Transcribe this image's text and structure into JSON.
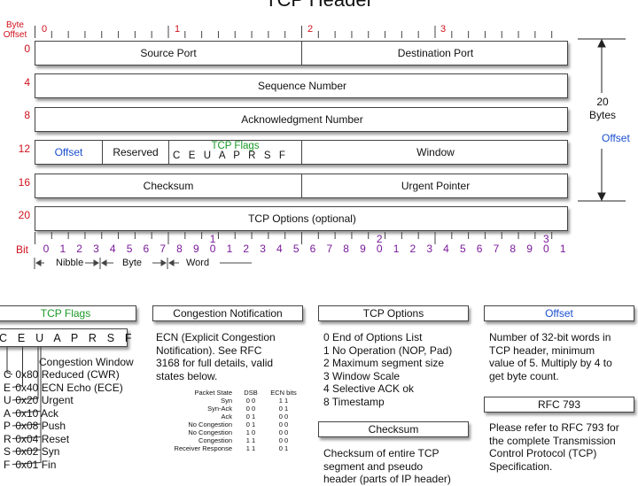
{
  "title": "TCP Header",
  "byte_offset_label": [
    "Byte",
    "Offset"
  ],
  "row_offsets": [
    "0",
    "4",
    "8",
    "12",
    "16",
    "20"
  ],
  "byte_columns": [
    "0",
    "1",
    "2",
    "3"
  ],
  "rows": {
    "source_port": "Source Port",
    "destination_port": "Destination Port",
    "sequence_number": "Sequence Number",
    "ack_number": "Acknowledgment Number",
    "offset": "Offset",
    "reserved": "Reserved",
    "tcp_flags_title": "TCP Flags",
    "flags_letters": "C E U A P R S F",
    "window": "Window",
    "checksum": "Checksum",
    "urgent_pointer": "Urgent Pointer",
    "tcp_options": "TCP Options (optional)"
  },
  "bit_label": "Bit",
  "bit_numbers": [
    "0",
    "1",
    "2",
    "3",
    "4",
    "5",
    "6",
    "7",
    "8",
    "9",
    "10",
    "1",
    "2",
    "3",
    "4",
    "5",
    "6",
    "7",
    "8",
    "9",
    "20",
    "1",
    "2",
    "3",
    "4",
    "5",
    "6",
    "7",
    "8",
    "9",
    "30",
    "1"
  ],
  "scale": {
    "nibble": "Nibble",
    "byte": "Byte",
    "word": "Word"
  },
  "side": {
    "size": "20",
    "size_unit": "Bytes",
    "offset": "Offset"
  },
  "panels": {
    "tcp_flags": {
      "title": "TCP Flags",
      "letters": "C E U A P R S F",
      "subtitle": "Congestion Window",
      "items": [
        {
          "l": "C",
          "h": "0x80",
          "t": "Reduced (CWR)"
        },
        {
          "l": "E",
          "h": "0x40",
          "t": "ECN Echo (ECE)"
        },
        {
          "l": "U",
          "h": "0x20",
          "t": "Urgent"
        },
        {
          "l": "A",
          "h": "0x10",
          "t": "Ack"
        },
        {
          "l": "P",
          "h": "0x08",
          "t": "Push"
        },
        {
          "l": "R",
          "h": "0x04",
          "t": "Reset"
        },
        {
          "l": "S",
          "h": "0x02",
          "t": "Syn"
        },
        {
          "l": "F",
          "h": "0x01",
          "t": "Fin"
        }
      ]
    },
    "congestion": {
      "title": "Congestion Notification",
      "lines": [
        "ECN (Explicit Congestion",
        "Notification).  See RFC",
        "3168 for full details, valid",
        "states below."
      ],
      "table_header": [
        "Packet State",
        "DSB",
        "ECN bits"
      ],
      "table_rows": [
        [
          "Syn",
          "0 0",
          "1 1"
        ],
        [
          "Syn-Ack",
          "0 0",
          "0 1"
        ],
        [
          "Ack",
          "0 1",
          "0 0"
        ],
        [
          "",
          "",
          " "
        ],
        [
          "No Congestion",
          "0 1",
          "0 0"
        ],
        [
          "No Congestion",
          "1 0",
          "0 0"
        ],
        [
          "",
          "",
          " "
        ],
        [
          "Congestion",
          "1 1",
          "0 0"
        ],
        [
          "Receiver Response",
          "1 1",
          "0 1"
        ]
      ]
    },
    "tcp_options": {
      "title": "TCP Options",
      "lines": [
        "0 End of Options List",
        "1 No Operation (NOP, Pad)",
        "2 Maximum segment size",
        "3 Window Scale",
        "4 Selective ACK ok",
        "8 Timestamp"
      ]
    },
    "checksum": {
      "title": "Checksum",
      "lines": [
        "Checksum of entire TCP",
        "segment and pseudo",
        "header (parts of IP header)"
      ]
    },
    "offset": {
      "title": "Offset",
      "lines": [
        "Number of 32-bit words in",
        "TCP header, minimum",
        "value of 5.  Multiply by 4 to",
        "get byte count."
      ]
    },
    "rfc": {
      "title": "RFC 793",
      "lines": [
        "Please refer to RFC 793 for",
        "the complete Transmission",
        "Control Protocol (TCP)",
        "Specification."
      ]
    }
  },
  "colors": {
    "offset_red": "#d0111d",
    "blue": "#1a4fd0",
    "green": "#1b9a27",
    "purple": "#7a1a9a"
  }
}
